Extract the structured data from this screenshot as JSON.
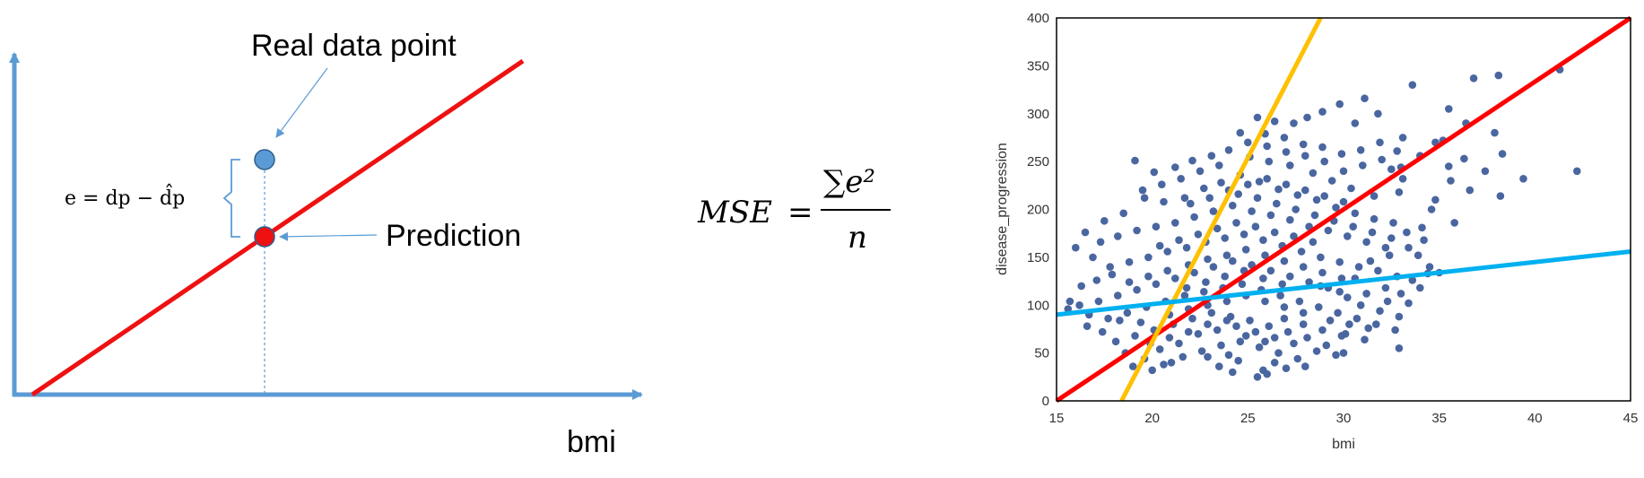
{
  "diagram": {
    "annotation_real": "Real data point",
    "annotation_prediction": "Prediction",
    "x_axis_label": "bmi",
    "error_formula": "e = dp − d̂p",
    "colors": {
      "axis": "#5b9bd5",
      "line": "#ee1111",
      "point_fill": "#5b9bd5",
      "pred_fill": "#ee1111"
    }
  },
  "formula": {
    "lhs": "MSE",
    "equals": "=",
    "numerator": "∑e²",
    "denominator": "n"
  },
  "chart_data": {
    "type": "scatter",
    "xlabel": "bmi",
    "ylabel": "disease_progression",
    "xlim": [
      15,
      45
    ],
    "ylim": [
      0,
      400
    ],
    "xticks": [
      15,
      20,
      25,
      30,
      35,
      40,
      45
    ],
    "yticks": [
      0,
      50,
      100,
      150,
      200,
      250,
      300,
      350,
      400
    ],
    "grid": false,
    "marker_color": "#4a66a0",
    "lines": [
      {
        "color": "#ff0000",
        "from": [
          15,
          0
        ],
        "to": [
          45,
          400
        ]
      },
      {
        "color": "#ffc000",
        "from": [
          18.4,
          0
        ],
        "to": [
          28.8,
          400
        ]
      },
      {
        "color": "#00b0f0",
        "from": [
          15,
          90
        ],
        "to": [
          45,
          156
        ]
      }
    ],
    "points": [
      [
        41.3,
        346
      ],
      [
        42.2,
        240
      ],
      [
        38.1,
        340
      ],
      [
        36.8,
        337
      ],
      [
        35.5,
        305
      ],
      [
        34.8,
        270
      ],
      [
        35.2,
        272
      ],
      [
        36.4,
        290
      ],
      [
        33.6,
        330
      ],
      [
        33.1,
        275
      ],
      [
        32.8,
        261
      ],
      [
        34.0,
        256
      ],
      [
        35.5,
        245
      ],
      [
        36.3,
        253
      ],
      [
        37.9,
        280
      ],
      [
        38.3,
        258
      ],
      [
        39.4,
        232
      ],
      [
        31.8,
        300
      ],
      [
        31.1,
        316
      ],
      [
        30.6,
        290
      ],
      [
        29.8,
        310
      ],
      [
        28.9,
        302
      ],
      [
        28.1,
        296
      ],
      [
        27.4,
        290
      ],
      [
        26.4,
        292
      ],
      [
        25.5,
        296
      ],
      [
        25.9,
        279
      ],
      [
        26.9,
        275
      ],
      [
        27.9,
        268
      ],
      [
        28.9,
        265
      ],
      [
        29.9,
        258
      ],
      [
        30.9,
        262
      ],
      [
        31.9,
        270
      ],
      [
        32.5,
        242
      ],
      [
        33.1,
        232
      ],
      [
        32.9,
        218
      ],
      [
        31.6,
        214
      ],
      [
        30.4,
        222
      ],
      [
        29.4,
        230
      ],
      [
        28.4,
        238
      ],
      [
        27.2,
        246
      ],
      [
        26.1,
        250
      ],
      [
        25.1,
        255
      ],
      [
        24.0,
        262
      ],
      [
        23.1,
        256
      ],
      [
        22.1,
        251
      ],
      [
        21.2,
        244
      ],
      [
        20.1,
        239
      ],
      [
        19.1,
        251
      ],
      [
        19.6,
        212
      ],
      [
        20.6,
        208
      ],
      [
        21.7,
        212
      ],
      [
        22.7,
        222
      ],
      [
        23.6,
        228
      ],
      [
        24.6,
        236
      ],
      [
        25.6,
        229
      ],
      [
        26.6,
        221
      ],
      [
        27.6,
        215
      ],
      [
        28.6,
        210
      ],
      [
        29.6,
        202
      ],
      [
        30.6,
        196
      ],
      [
        31.6,
        190
      ],
      [
        32.6,
        186
      ],
      [
        33.3,
        176
      ],
      [
        34.1,
        181
      ],
      [
        34.6,
        200
      ],
      [
        33.9,
        152
      ],
      [
        32.2,
        160
      ],
      [
        31.2,
        166
      ],
      [
        30.2,
        172
      ],
      [
        29.2,
        178
      ],
      [
        28.2,
        182
      ],
      [
        27.2,
        189
      ],
      [
        26.2,
        194
      ],
      [
        25.2,
        198
      ],
      [
        24.2,
        204
      ],
      [
        23.2,
        198
      ],
      [
        22.2,
        192
      ],
      [
        21.2,
        186
      ],
      [
        20.2,
        182
      ],
      [
        19.2,
        178
      ],
      [
        18.2,
        172
      ],
      [
        17.3,
        166
      ],
      [
        16.9,
        150
      ],
      [
        17.8,
        140
      ],
      [
        18.8,
        145
      ],
      [
        19.8,
        150
      ],
      [
        20.8,
        156
      ],
      [
        21.8,
        160
      ],
      [
        22.8,
        166
      ],
      [
        23.8,
        170
      ],
      [
        24.8,
        174
      ],
      [
        25.8,
        168
      ],
      [
        26.8,
        162
      ],
      [
        27.8,
        156
      ],
      [
        28.8,
        150
      ],
      [
        29.8,
        145
      ],
      [
        30.8,
        140
      ],
      [
        31.8,
        136
      ],
      [
        32.8,
        130
      ],
      [
        33.6,
        126
      ],
      [
        34.5,
        140
      ],
      [
        34.4,
        133
      ],
      [
        32.2,
        118
      ],
      [
        31.2,
        112
      ],
      [
        30.2,
        108
      ],
      [
        29.2,
        118
      ],
      [
        28.2,
        124
      ],
      [
        27.2,
        130
      ],
      [
        26.2,
        136
      ],
      [
        25.2,
        142
      ],
      [
        24.2,
        146
      ],
      [
        23.2,
        140
      ],
      [
        22.2,
        134
      ],
      [
        21.2,
        128
      ],
      [
        20.2,
        122
      ],
      [
        19.2,
        116
      ],
      [
        18.2,
        110
      ],
      [
        17.2,
        104
      ],
      [
        16.2,
        100
      ],
      [
        15.6,
        96
      ],
      [
        15.7,
        104
      ],
      [
        16.7,
        90
      ],
      [
        17.7,
        86
      ],
      [
        18.7,
        92
      ],
      [
        19.7,
        98
      ],
      [
        20.7,
        104
      ],
      [
        21.7,
        110
      ],
      [
        22.7,
        114
      ],
      [
        23.7,
        118
      ],
      [
        24.7,
        122
      ],
      [
        25.7,
        116
      ],
      [
        26.7,
        110
      ],
      [
        27.7,
        104
      ],
      [
        28.7,
        98
      ],
      [
        29.7,
        92
      ],
      [
        30.7,
        86
      ],
      [
        31.7,
        80
      ],
      [
        32.7,
        74
      ],
      [
        32.9,
        55
      ],
      [
        31.1,
        64
      ],
      [
        30.1,
        70
      ],
      [
        29.1,
        58
      ],
      [
        28.1,
        66
      ],
      [
        27.1,
        72
      ],
      [
        26.1,
        78
      ],
      [
        25.1,
        84
      ],
      [
        24.1,
        88
      ],
      [
        23.1,
        92
      ],
      [
        22.1,
        86
      ],
      [
        21.1,
        80
      ],
      [
        20.1,
        74
      ],
      [
        19.1,
        68
      ],
      [
        18.1,
        62
      ],
      [
        18.6,
        50
      ],
      [
        19.6,
        44
      ],
      [
        20.6,
        38
      ],
      [
        21.6,
        46
      ],
      [
        22.6,
        52
      ],
      [
        23.6,
        58
      ],
      [
        24.6,
        62
      ],
      [
        25.6,
        56
      ],
      [
        26.6,
        50
      ],
      [
        27.6,
        44
      ],
      [
        28.6,
        52
      ],
      [
        29.6,
        48
      ],
      [
        25.5,
        25
      ],
      [
        25.8,
        32
      ],
      [
        26.4,
        40
      ],
      [
        24.5,
        42
      ],
      [
        22.9,
        46
      ],
      [
        21.4,
        60
      ],
      [
        20.4,
        54
      ],
      [
        19.4,
        82
      ],
      [
        20.9,
        90
      ],
      [
        21.9,
        96
      ],
      [
        22.9,
        100
      ],
      [
        23.9,
        104
      ],
      [
        24.9,
        110
      ],
      [
        25.9,
        104
      ],
      [
        26.9,
        98
      ],
      [
        27.9,
        92
      ],
      [
        22.4,
        70
      ],
      [
        23.4,
        74
      ],
      [
        24.4,
        78
      ],
      [
        25.4,
        72
      ],
      [
        26.4,
        66
      ],
      [
        27.4,
        60
      ],
      [
        21.9,
        142
      ],
      [
        22.9,
        148
      ],
      [
        23.9,
        152
      ],
      [
        24.9,
        158
      ],
      [
        25.9,
        152
      ],
      [
        26.9,
        146
      ],
      [
        27.9,
        140
      ],
      [
        28.9,
        134
      ],
      [
        29.9,
        128
      ],
      [
        20.4,
        162
      ],
      [
        21.4,
        168
      ],
      [
        22.4,
        174
      ],
      [
        23.4,
        180
      ],
      [
        24.4,
        186
      ],
      [
        25.4,
        182
      ],
      [
        26.4,
        176
      ],
      [
        27.4,
        172
      ],
      [
        28.4,
        166
      ],
      [
        24.0,
        220
      ],
      [
        25.0,
        226
      ],
      [
        26.0,
        232
      ],
      [
        27.0,
        226
      ],
      [
        28.0,
        220
      ],
      [
        29.0,
        214
      ],
      [
        30.0,
        208
      ],
      [
        23.0,
        212
      ],
      [
        22.0,
        206
      ],
      [
        27.5,
        200
      ],
      [
        28.5,
        194
      ],
      [
        29.5,
        188
      ],
      [
        30.5,
        182
      ],
      [
        31.5,
        176
      ],
      [
        32.5,
        170
      ],
      [
        26.5,
        206
      ],
      [
        25.5,
        212
      ],
      [
        24.5,
        216
      ],
      [
        18.8,
        124
      ],
      [
        19.8,
        130
      ],
      [
        20.8,
        136
      ],
      [
        21.8,
        118
      ],
      [
        22.8,
        124
      ],
      [
        23.8,
        130
      ],
      [
        24.8,
        136
      ],
      [
        25.8,
        128
      ],
      [
        26.8,
        122
      ],
      [
        19.9,
        60
      ],
      [
        20.9,
        66
      ],
      [
        21.9,
        72
      ],
      [
        22.9,
        80
      ],
      [
        23.9,
        84
      ],
      [
        24.9,
        68
      ],
      [
        25.9,
        62
      ],
      [
        26.9,
        86
      ],
      [
        27.9,
        80
      ],
      [
        28.9,
        74
      ],
      [
        29.9,
        68
      ],
      [
        30.9,
        100
      ],
      [
        31.9,
        94
      ],
      [
        32.9,
        88
      ],
      [
        33.4,
        102
      ],
      [
        23.5,
        36
      ],
      [
        24.2,
        30
      ],
      [
        27.0,
        34
      ],
      [
        28.8,
        120
      ],
      [
        29.8,
        114
      ],
      [
        30.6,
        128
      ],
      [
        31.4,
        146
      ],
      [
        32.4,
        152
      ],
      [
        33.4,
        160
      ],
      [
        34.2,
        168
      ],
      [
        35.8,
        186
      ],
      [
        36.6,
        220
      ],
      [
        37.4,
        240
      ],
      [
        38.2,
        214
      ],
      [
        30.0,
        240
      ],
      [
        31.0,
        246
      ],
      [
        32.0,
        252
      ],
      [
        33.0,
        244
      ],
      [
        29.0,
        250
      ],
      [
        28.0,
        256
      ],
      [
        27.0,
        260
      ],
      [
        26.0,
        266
      ],
      [
        25.0,
        270
      ],
      [
        24.6,
        280
      ],
      [
        23.5,
        246
      ],
      [
        22.5,
        240
      ],
      [
        21.5,
        232
      ],
      [
        20.5,
        226
      ],
      [
        19.5,
        220
      ],
      [
        18.5,
        196
      ],
      [
        17.5,
        188
      ],
      [
        16.5,
        176
      ],
      [
        16.0,
        160
      ],
      [
        16.3,
        120
      ],
      [
        17.1,
        126
      ],
      [
        17.9,
        132
      ],
      [
        18.3,
        84
      ],
      [
        17.4,
        72
      ],
      [
        16.6,
        78
      ],
      [
        19.0,
        36
      ],
      [
        20.0,
        32
      ],
      [
        21.0,
        40
      ],
      [
        24.0,
        48
      ],
      [
        26.0,
        28
      ],
      [
        28.0,
        36
      ],
      [
        30.0,
        50
      ],
      [
        29.3,
        84
      ],
      [
        30.3,
        80
      ],
      [
        31.3,
        76
      ],
      [
        32.3,
        104
      ],
      [
        33.0,
        112
      ],
      [
        34.0,
        118
      ],
      [
        35.0,
        134
      ],
      [
        34.8,
        210
      ],
      [
        35.6,
        230
      ]
    ]
  }
}
